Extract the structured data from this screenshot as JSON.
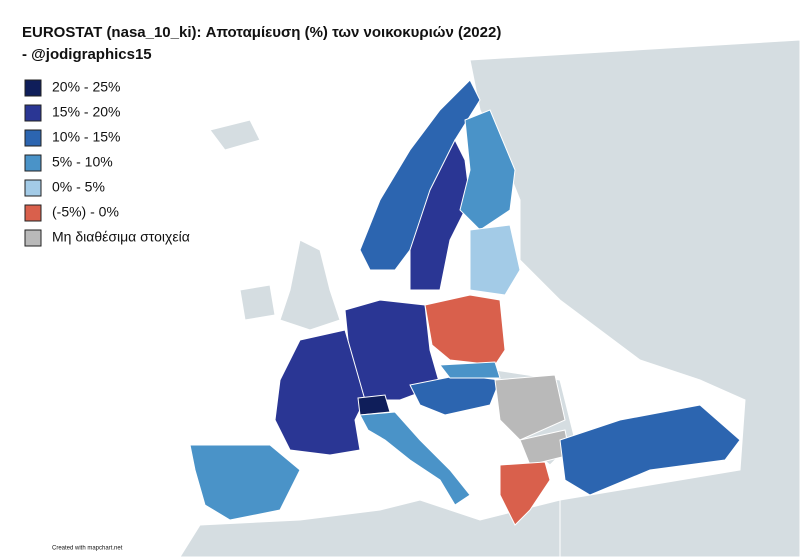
{
  "title_lines": [
    "EUROSTAT (nasa_10_ki): Αποταμίευση (%) των νοικοκυριών (2022)",
    "- @jodigraphics15"
  ],
  "legend": [
    {
      "label": "20% - 25%",
      "color": "#0f1e5a"
    },
    {
      "label": "15% - 20%",
      "color": "#2a3694"
    },
    {
      "label": "10% - 15%",
      "color": "#2c65b0"
    },
    {
      "label": "5% - 10%",
      "color": "#4a93c8"
    },
    {
      "label": "0% - 5%",
      "color": "#a3cbe7"
    },
    {
      "label": "(-5%) - 0%",
      "color": "#d9604c"
    },
    {
      "label": "Μη διαθέσιμα στοιχεία",
      "color": "#b9b9b9"
    }
  ],
  "credit": "Created with mapchart.net"
}
